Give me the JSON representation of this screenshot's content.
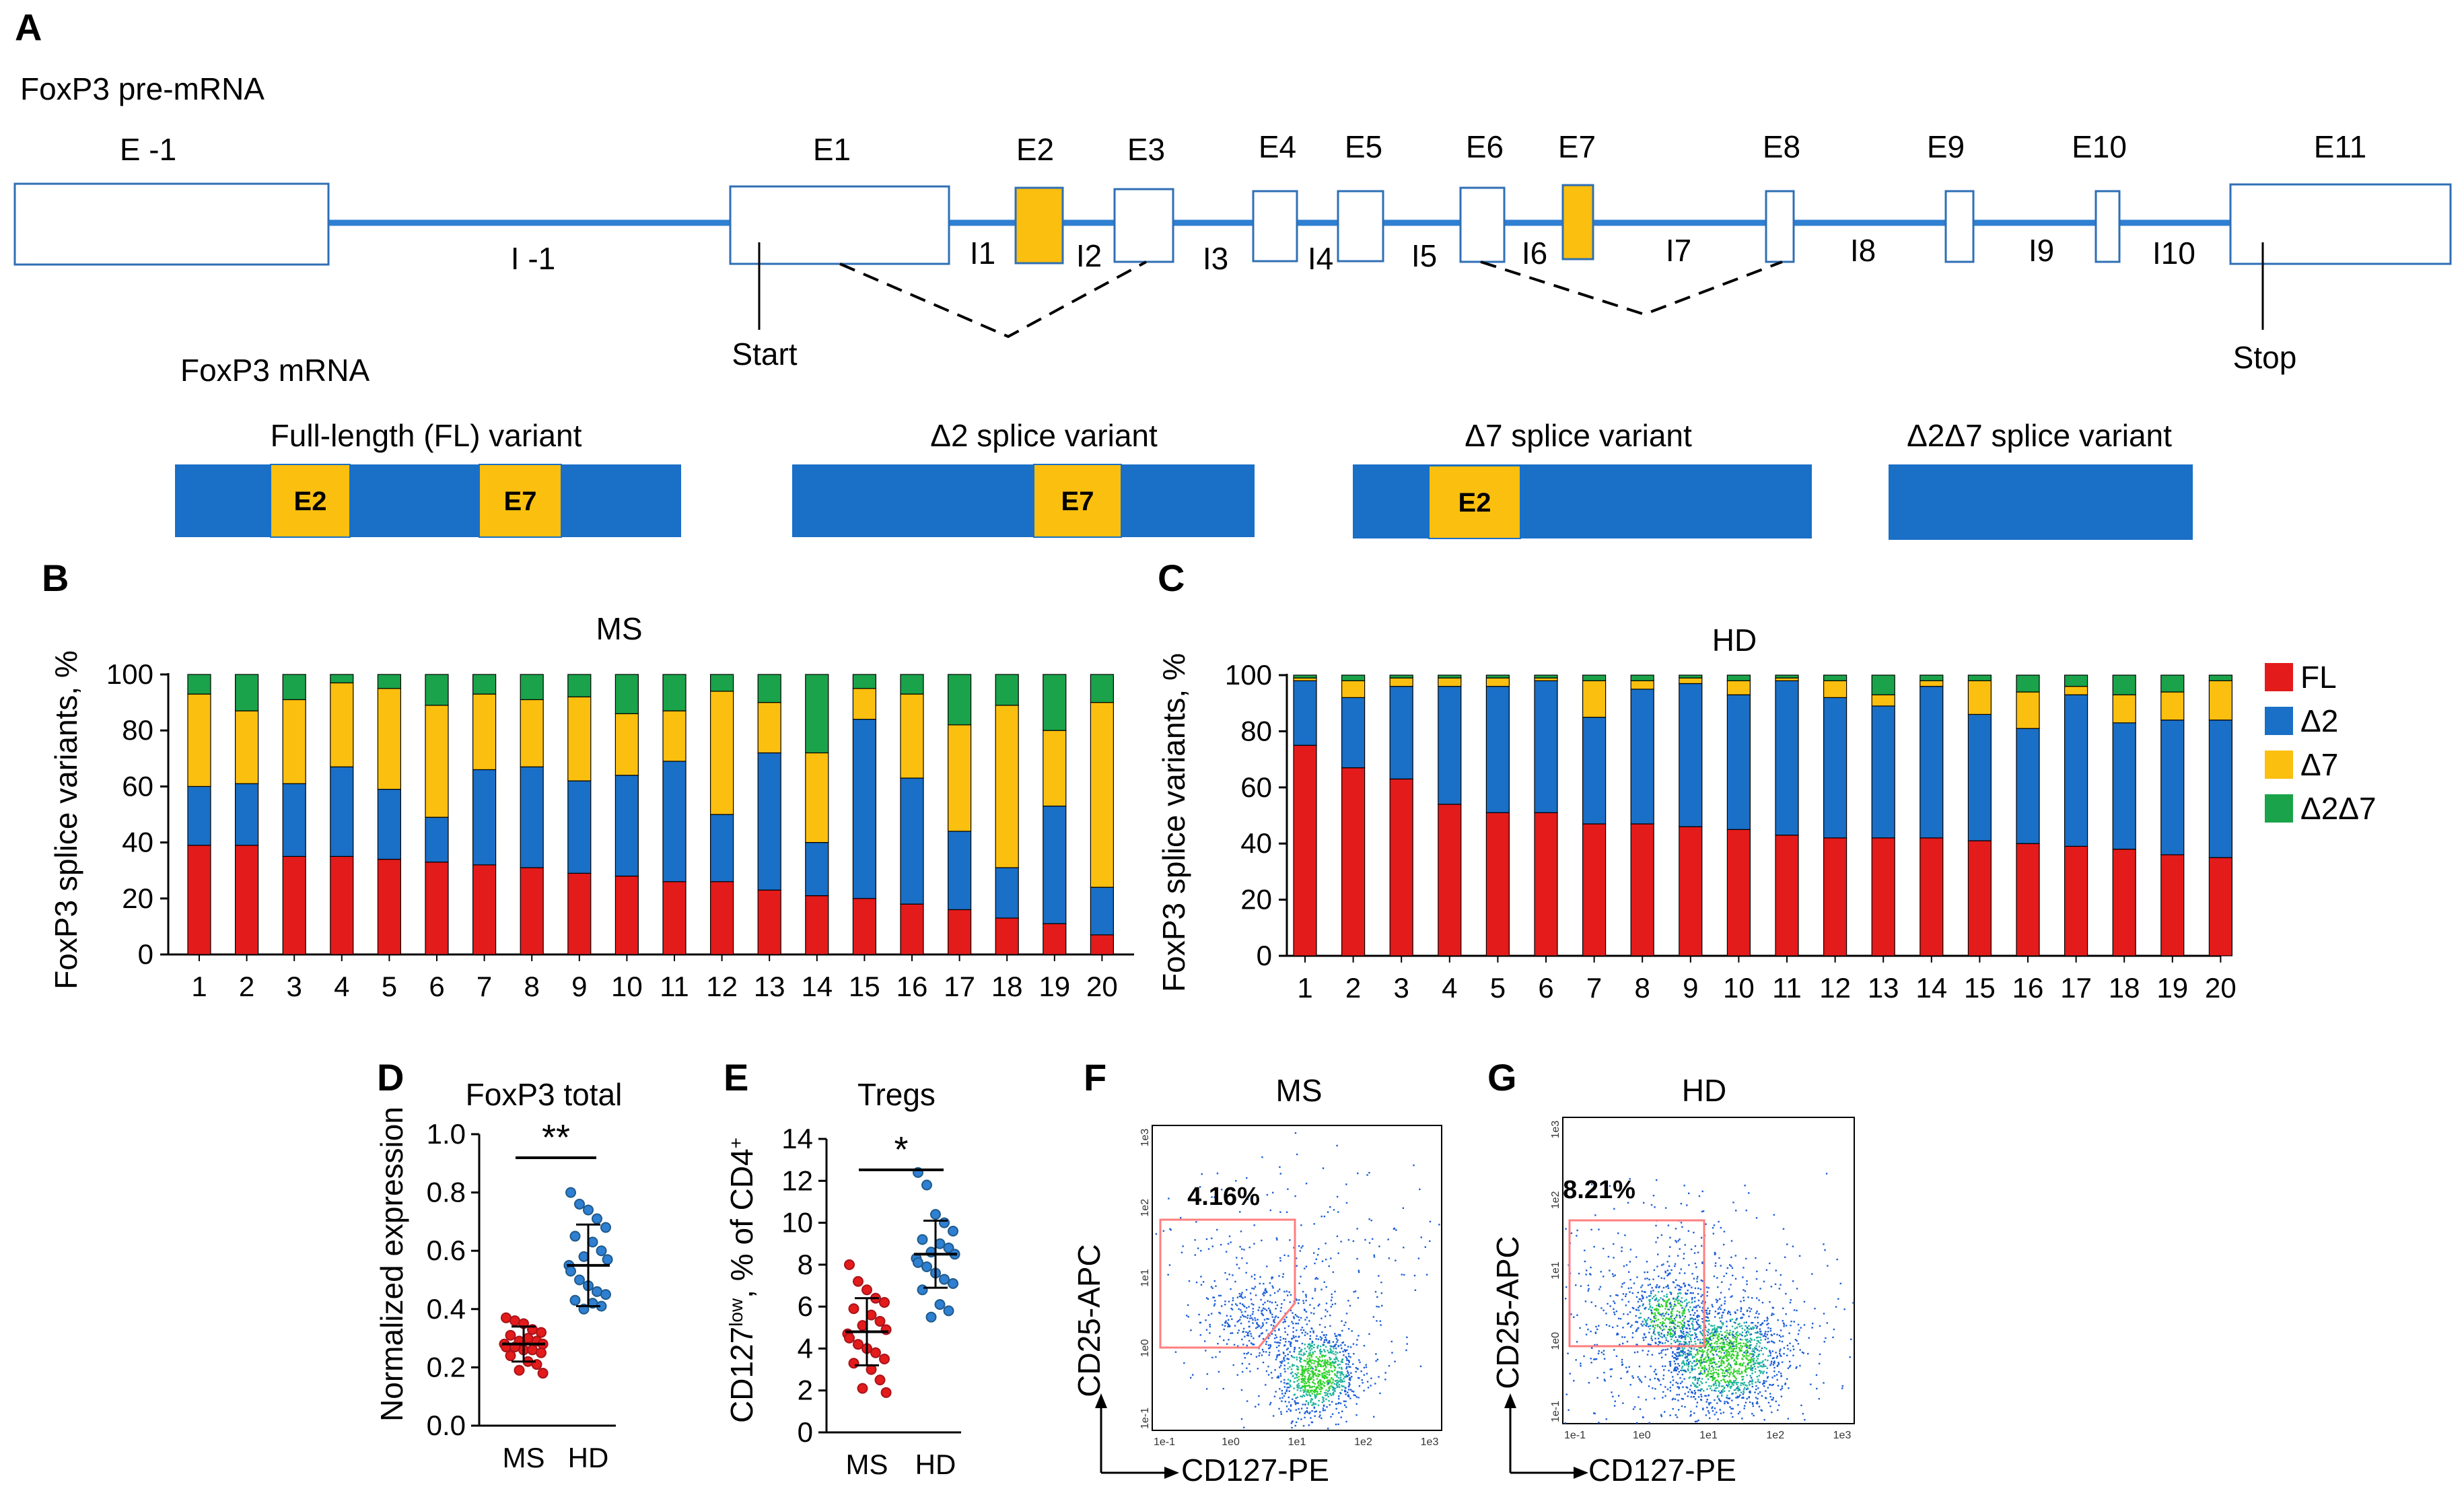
{
  "colors": {
    "blue": "#1a6fc6",
    "yellow": "#fbbf0f",
    "red": "#e31b1b",
    "green": "#1aa34a",
    "line_blue": "#2f7fd2",
    "dark_red": "#a8141a",
    "dark_blue": "#1f5a8a",
    "gate": "#ff7f7f"
  },
  "panelA": {
    "letter": "A",
    "pre_mrna_label": "FoxP3 pre-mRNA",
    "mrna_label": "FoxP3 mRNA",
    "start_label": "Start",
    "stop_label": "Stop",
    "exons": [
      {
        "name": "E -1",
        "yellow": false
      },
      {
        "name": "E1",
        "yellow": false
      },
      {
        "name": "E2",
        "yellow": true
      },
      {
        "name": "E3",
        "yellow": false
      },
      {
        "name": "E4",
        "yellow": false
      },
      {
        "name": "E5",
        "yellow": false
      },
      {
        "name": "E6",
        "yellow": false
      },
      {
        "name": "E7",
        "yellow": true
      },
      {
        "name": "E8",
        "yellow": false
      },
      {
        "name": "E9",
        "yellow": false
      },
      {
        "name": "E10",
        "yellow": false
      },
      {
        "name": "E11",
        "yellow": false
      }
    ],
    "introns": [
      "I -1",
      "I1",
      "I2",
      "I3",
      "I4",
      "I5",
      "I6",
      "I7",
      "I8",
      "I9",
      "I10"
    ],
    "variants": [
      {
        "title": "Full-length  (FL) variant",
        "exons": [
          "E2",
          "E7"
        ]
      },
      {
        "title": "Δ2 splice variant",
        "exons": [
          "E7"
        ]
      },
      {
        "title": "Δ7 splice variant",
        "exons": [
          "E2"
        ]
      },
      {
        "title": "Δ2Δ7 splice variant",
        "exons": []
      }
    ]
  },
  "chart_data": [
    {
      "id": "B",
      "type": "bar",
      "stacked": true,
      "title": "MS",
      "ylabel": "FoxP3 splice variants, %",
      "ylim": [
        0,
        100
      ],
      "yticks": [
        "0",
        "20",
        "40",
        "60",
        "80",
        "100"
      ],
      "categories": [
        "1",
        "2",
        "3",
        "4",
        "5",
        "6",
        "7",
        "8",
        "9",
        "10",
        "11",
        "12",
        "13",
        "14",
        "15",
        "16",
        "17",
        "18",
        "19",
        "20"
      ],
      "series": [
        {
          "name": "FL",
          "values": [
            39,
            39,
            35,
            35,
            34,
            33,
            32,
            31,
            29,
            28,
            26,
            26,
            23,
            21,
            20,
            18,
            16,
            13,
            11,
            7
          ]
        },
        {
          "name": "Δ2",
          "values": [
            21,
            22,
            26,
            32,
            25,
            16,
            34,
            36,
            33,
            36,
            43,
            24,
            49,
            19,
            64,
            45,
            28,
            18,
            42,
            17
          ]
        },
        {
          "name": "Δ7",
          "values": [
            33,
            26,
            30,
            30,
            36,
            40,
            27,
            24,
            30,
            22,
            18,
            44,
            18,
            32,
            11,
            30,
            38,
            58,
            27,
            66
          ]
        },
        {
          "name": "Δ2Δ7",
          "values": [
            7,
            13,
            9,
            3,
            5,
            11,
            7,
            9,
            8,
            14,
            13,
            6,
            10,
            28,
            5,
            7,
            18,
            11,
            20,
            10
          ]
        }
      ]
    },
    {
      "id": "C",
      "type": "bar",
      "stacked": true,
      "title": "HD",
      "ylabel": "FoxP3 splice variants, %",
      "ylim": [
        0,
        100
      ],
      "yticks": [
        "0",
        "20",
        "40",
        "60",
        "80",
        "100"
      ],
      "categories": [
        "1",
        "2",
        "3",
        "4",
        "5",
        "6",
        "7",
        "8",
        "9",
        "10",
        "11",
        "12",
        "13",
        "14",
        "15",
        "16",
        "17",
        "18",
        "19",
        "20"
      ],
      "series": [
        {
          "name": "FL",
          "values": [
            75,
            67,
            63,
            54,
            51,
            51,
            47,
            47,
            46,
            45,
            43,
            42,
            42,
            42,
            41,
            40,
            39,
            38,
            36,
            35
          ]
        },
        {
          "name": "Δ2",
          "values": [
            23,
            25,
            33,
            42,
            45,
            47,
            38,
            48,
            51,
            48,
            55,
            50,
            47,
            54,
            45,
            41,
            54,
            45,
            48,
            49
          ]
        },
        {
          "name": "Δ7",
          "values": [
            1,
            6,
            3,
            3,
            3,
            1,
            13,
            3,
            2,
            5,
            1,
            6,
            4,
            2,
            12,
            13,
            3,
            10,
            10,
            14
          ]
        },
        {
          "name": "Δ2Δ7",
          "values": [
            1,
            2,
            1,
            1,
            1,
            1,
            2,
            2,
            1,
            2,
            1,
            2,
            7,
            2,
            2,
            6,
            4,
            7,
            6,
            2
          ]
        }
      ],
      "legend": [
        "FL",
        "Δ2",
        "Δ7",
        "Δ2Δ7"
      ]
    },
    {
      "id": "D",
      "type": "scatter",
      "title": "FoxP3 total",
      "ylabel": "Normalized expression",
      "ylim": [
        0,
        1.0
      ],
      "yticks": [
        "0.0",
        "0.2",
        "0.4",
        "0.6",
        "0.8",
        "1.0"
      ],
      "categories": [
        "MS",
        "HD"
      ],
      "significance": "**",
      "groups": [
        {
          "name": "MS",
          "mean": 0.28,
          "sd": 0.06,
          "points": [
            0.37,
            0.36,
            0.35,
            0.33,
            0.32,
            0.31,
            0.3,
            0.29,
            0.29,
            0.28,
            0.28,
            0.27,
            0.27,
            0.26,
            0.26,
            0.25,
            0.24,
            0.22,
            0.21,
            0.19,
            0.18
          ]
        },
        {
          "name": "HD",
          "mean": 0.55,
          "sd": 0.14,
          "points": [
            0.8,
            0.76,
            0.74,
            0.71,
            0.68,
            0.65,
            0.63,
            0.6,
            0.58,
            0.57,
            0.55,
            0.53,
            0.5,
            0.48,
            0.46,
            0.45,
            0.43,
            0.42,
            0.41,
            0.4
          ]
        }
      ]
    },
    {
      "id": "E",
      "type": "scatter",
      "title": "Tregs",
      "ylabel_main": "CD127",
      "ylabel_sup": "low",
      "ylabel_mid": ", % of CD4",
      "ylabel_plus": "+",
      "ylim": [
        0,
        14
      ],
      "yticks": [
        "0",
        "2",
        "4",
        "6",
        "8",
        "10",
        "12",
        "14"
      ],
      "categories": [
        "MS",
        "HD"
      ],
      "significance": "*",
      "groups": [
        {
          "name": "MS",
          "mean": 4.8,
          "sd": 1.6,
          "points": [
            8.0,
            7.2,
            6.8,
            6.4,
            6.2,
            5.9,
            5.6,
            5.3,
            5.1,
            4.9,
            4.7,
            4.5,
            4.2,
            4.0,
            3.8,
            3.5,
            3.3,
            3.0,
            2.5,
            2.1,
            1.9
          ]
        },
        {
          "name": "HD",
          "mean": 8.5,
          "sd": 1.6,
          "points": [
            12.4,
            11.8,
            10.4,
            10.0,
            9.6,
            9.2,
            9.0,
            8.8,
            8.6,
            8.5,
            8.3,
            8.1,
            7.9,
            7.6,
            7.3,
            7.1,
            6.8,
            6.1,
            5.8,
            5.5
          ]
        }
      ]
    }
  ],
  "panelB": {
    "letter": "B"
  },
  "panelC": {
    "letter": "C"
  },
  "panelD": {
    "letter": "D"
  },
  "panelE": {
    "letter": "E"
  },
  "panelF": {
    "letter": "F",
    "title": "MS",
    "gate_percent": "4.16%",
    "xlabel": "CD127-PE",
    "ylabel": "CD25-APC",
    "xticks": [
      "1e-1",
      "1e0",
      "1e1",
      "1e2",
      "1e3"
    ],
    "yticks": [
      "1e-1",
      "1e0",
      "1e1",
      "1e2",
      "1e3"
    ]
  },
  "panelG": {
    "letter": "G",
    "title": "HD",
    "gate_percent": "8.21%",
    "xlabel": "CD127-PE",
    "ylabel": "CD25-APC",
    "xticks": [
      "1e-1",
      "1e0",
      "1e1",
      "1e2",
      "1e3"
    ],
    "yticks": [
      "1e-1",
      "1e0",
      "1e1",
      "1e2",
      "1e3"
    ]
  }
}
